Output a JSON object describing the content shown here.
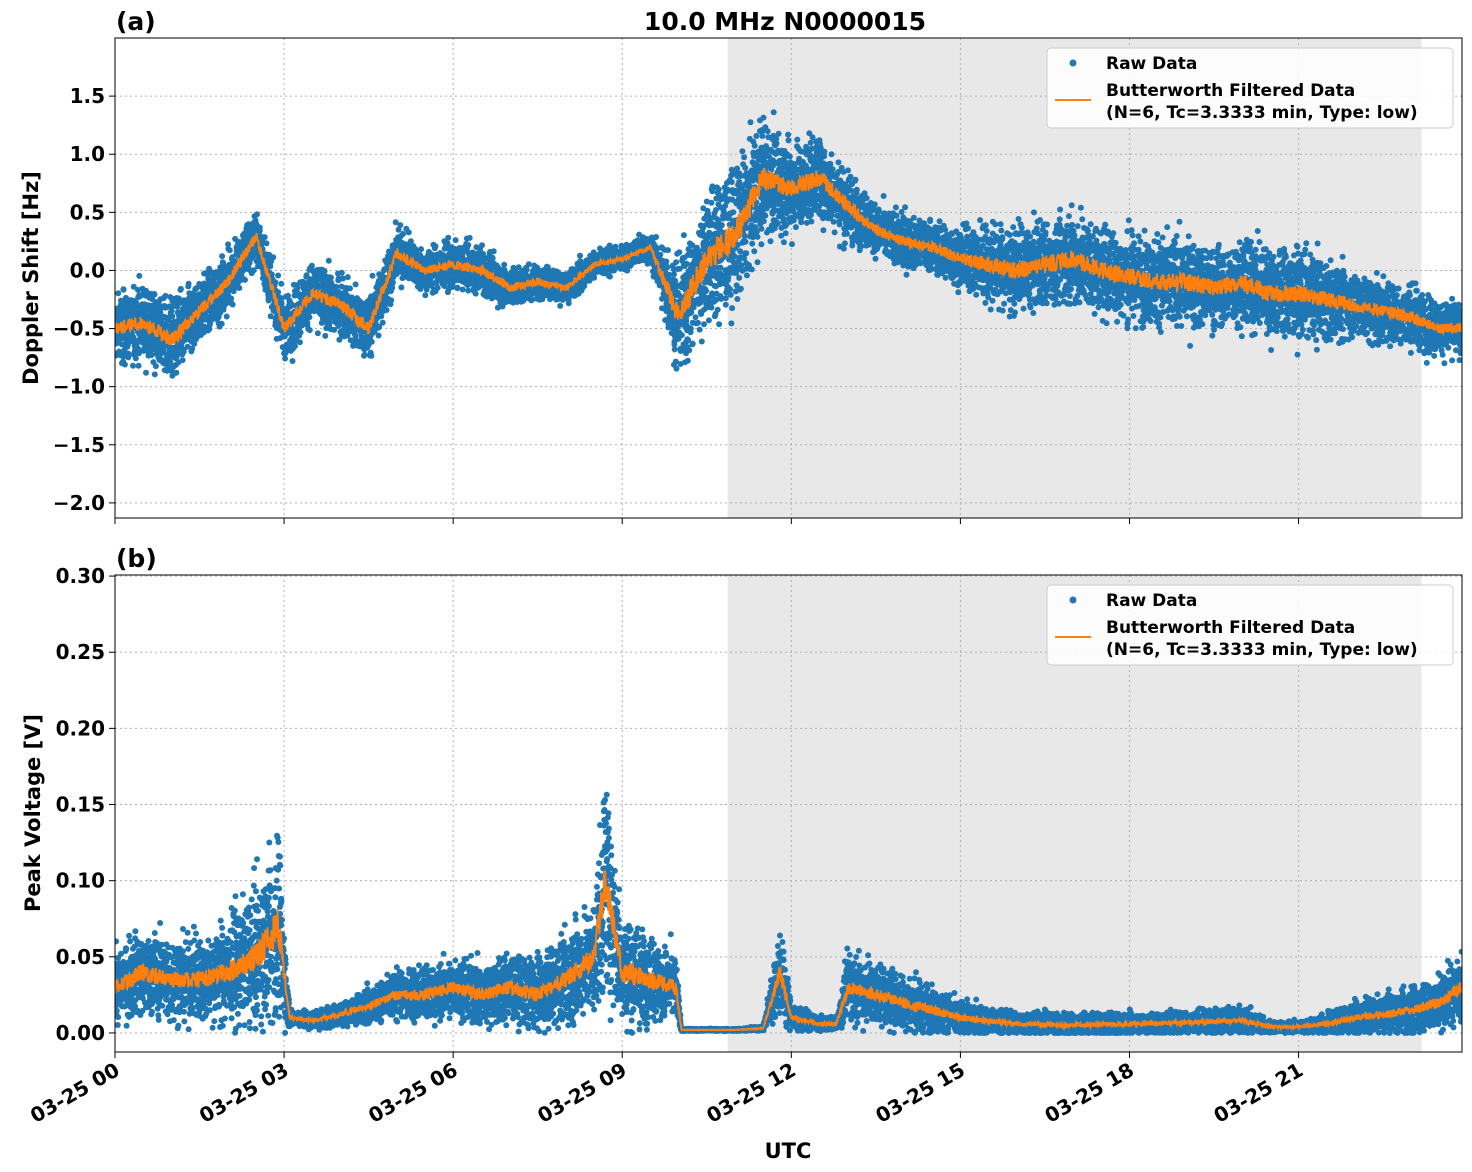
{
  "chart_data": [
    {
      "type": "scatter",
      "panel_label": "(a)",
      "title": "10.0 MHz N0000015",
      "ylabel": "Doppler Shift [Hz]",
      "xlabel": "",
      "xlim_hours": [
        0,
        23.9
      ],
      "ylim": [
        -2.13,
        2.0
      ],
      "yticks": [
        -2.0,
        -1.5,
        -1.0,
        -0.5,
        0.0,
        0.5,
        1.0,
        1.5
      ],
      "ytick_labels": [
        "−2.0",
        "−1.5",
        "−1.0",
        "−0.5",
        "0.0",
        "0.5",
        "1.0",
        "1.5"
      ],
      "grid": true,
      "legend_placement": "upper-right",
      "shaded_span_hours": [
        10.87,
        23.18
      ],
      "series": [
        {
          "name": "Raw Data",
          "kind": "points",
          "color": "#1f77b4"
        },
        {
          "name": "Butterworth Filtered Data\n(N=6, Tc=3.3333 min, Type: low)",
          "kind": "line",
          "color": "#ff7f0e"
        }
      ],
      "legend": [
        "Raw Data",
        "Butterworth Filtered Data",
        "(N=6, Tc=3.3333 min, Type: low)"
      ],
      "samples_hour_filtered_spread": [
        [
          0,
          -0.5,
          0.4
        ],
        [
          0.5,
          -0.45,
          0.4
        ],
        [
          1,
          -0.6,
          0.45
        ],
        [
          1.5,
          -0.35,
          0.35
        ],
        [
          2,
          -0.1,
          0.35
        ],
        [
          2.5,
          0.3,
          0.3
        ],
        [
          3,
          -0.5,
          0.35
        ],
        [
          3.5,
          -0.2,
          0.35
        ],
        [
          4,
          -0.3,
          0.35
        ],
        [
          4.5,
          -0.5,
          0.4
        ],
        [
          5,
          0.15,
          0.3
        ],
        [
          5.5,
          0.0,
          0.25
        ],
        [
          6,
          0.05,
          0.25
        ],
        [
          6.5,
          0.0,
          0.25
        ],
        [
          7,
          -0.15,
          0.25
        ],
        [
          7.5,
          -0.1,
          0.2
        ],
        [
          8,
          -0.15,
          0.2
        ],
        [
          8.5,
          0.05,
          0.15
        ],
        [
          9,
          0.1,
          0.15
        ],
        [
          9.5,
          0.2,
          0.15
        ],
        [
          10,
          -0.4,
          0.7
        ],
        [
          10.5,
          0.1,
          0.8
        ],
        [
          11,
          0.3,
          0.8
        ],
        [
          11.5,
          0.8,
          0.7
        ],
        [
          12,
          0.7,
          0.5
        ],
        [
          12.5,
          0.8,
          0.5
        ],
        [
          13,
          0.55,
          0.4
        ],
        [
          13.5,
          0.35,
          0.3
        ],
        [
          14,
          0.25,
          0.3
        ],
        [
          14.5,
          0.2,
          0.3
        ],
        [
          15,
          0.1,
          0.35
        ],
        [
          15.5,
          0.05,
          0.45
        ],
        [
          16,
          0.0,
          0.5
        ],
        [
          16.5,
          0.05,
          0.5
        ],
        [
          17,
          0.1,
          0.5
        ],
        [
          17.5,
          0.0,
          0.5
        ],
        [
          18,
          -0.05,
          0.5
        ],
        [
          18.5,
          -0.1,
          0.5
        ],
        [
          19,
          -0.1,
          0.5
        ],
        [
          19.5,
          -0.15,
          0.45
        ],
        [
          20,
          -0.1,
          0.5
        ],
        [
          20.5,
          -0.2,
          0.5
        ],
        [
          21,
          -0.2,
          0.5
        ],
        [
          21.5,
          -0.25,
          0.45
        ],
        [
          22,
          -0.3,
          0.4
        ],
        [
          22.5,
          -0.35,
          0.35
        ],
        [
          23,
          -0.4,
          0.35
        ],
        [
          23.5,
          -0.5,
          0.3
        ],
        [
          23.9,
          -0.5,
          0.3
        ]
      ]
    },
    {
      "type": "scatter",
      "panel_label": "(b)",
      "ylabel": "Peak Voltage [V]",
      "xlabel": "UTC",
      "xlim_hours": [
        0,
        23.9
      ],
      "ylim": [
        -0.0125,
        0.3007
      ],
      "yticks": [
        0.0,
        0.05,
        0.1,
        0.15,
        0.2,
        0.25,
        0.3
      ],
      "ytick_labels": [
        "0.00",
        "0.05",
        "0.10",
        "0.15",
        "0.20",
        "0.25",
        "0.30"
      ],
      "grid": true,
      "legend_placement": "upper-right",
      "shaded_span_hours": [
        10.87,
        23.18
      ],
      "series": [
        {
          "name": "Raw Data",
          "kind": "points",
          "color": "#1f77b4"
        },
        {
          "name": "Butterworth Filtered Data\n(N=6, Tc=3.3333 min, Type: low)",
          "kind": "line",
          "color": "#ff7f0e"
        }
      ],
      "legend": [
        "Raw Data",
        "Butterworth Filtered Data",
        "(N=6, Tc=3.3333 min, Type: low)"
      ],
      "samples_hour_filtered_spread": [
        [
          0,
          0.03,
          0.03
        ],
        [
          0.5,
          0.04,
          0.04
        ],
        [
          1,
          0.035,
          0.035
        ],
        [
          1.5,
          0.035,
          0.035
        ],
        [
          2,
          0.04,
          0.045
        ],
        [
          2.5,
          0.05,
          0.06
        ],
        [
          2.9,
          0.07,
          0.08
        ],
        [
          3.1,
          0.01,
          0.008
        ],
        [
          3.5,
          0.008,
          0.008
        ],
        [
          4,
          0.012,
          0.01
        ],
        [
          4.5,
          0.018,
          0.015
        ],
        [
          5,
          0.025,
          0.02
        ],
        [
          5.5,
          0.025,
          0.025
        ],
        [
          6,
          0.03,
          0.025
        ],
        [
          6.5,
          0.025,
          0.03
        ],
        [
          7,
          0.03,
          0.03
        ],
        [
          7.5,
          0.025,
          0.03
        ],
        [
          8,
          0.035,
          0.04
        ],
        [
          8.5,
          0.05,
          0.05
        ],
        [
          8.7,
          0.1,
          0.1
        ],
        [
          9,
          0.04,
          0.05
        ],
        [
          9.5,
          0.035,
          0.04
        ],
        [
          9.95,
          0.03,
          0.03
        ],
        [
          10.05,
          0.002,
          0.001
        ],
        [
          10.5,
          0.002,
          0.001
        ],
        [
          11,
          0.002,
          0.001
        ],
        [
          11.5,
          0.003,
          0.002
        ],
        [
          11.8,
          0.04,
          0.04
        ],
        [
          12,
          0.01,
          0.012
        ],
        [
          12.5,
          0.006,
          0.006
        ],
        [
          12.8,
          0.006,
          0.006
        ],
        [
          13,
          0.03,
          0.03
        ],
        [
          13.5,
          0.025,
          0.025
        ],
        [
          14,
          0.02,
          0.025
        ],
        [
          14.5,
          0.015,
          0.02
        ],
        [
          15,
          0.01,
          0.015
        ],
        [
          15.5,
          0.008,
          0.012
        ],
        [
          16,
          0.006,
          0.01
        ],
        [
          17,
          0.005,
          0.01
        ],
        [
          18,
          0.006,
          0.01
        ],
        [
          19,
          0.007,
          0.01
        ],
        [
          20,
          0.008,
          0.012
        ],
        [
          20.5,
          0.004,
          0.005
        ],
        [
          21,
          0.004,
          0.005
        ],
        [
          21.5,
          0.006,
          0.008
        ],
        [
          22,
          0.01,
          0.015
        ],
        [
          22.5,
          0.012,
          0.015
        ],
        [
          23,
          0.015,
          0.02
        ],
        [
          23.5,
          0.02,
          0.025
        ],
        [
          23.9,
          0.03,
          0.03
        ]
      ]
    }
  ],
  "xticks_hours": [
    0,
    3,
    6,
    9,
    12,
    15,
    18,
    21
  ],
  "xtick_labels": [
    "03-25 00",
    "03-25 03",
    "03-25 06",
    "03-25 09",
    "03-25 12",
    "03-25 15",
    "03-25 18",
    "03-25 21"
  ]
}
